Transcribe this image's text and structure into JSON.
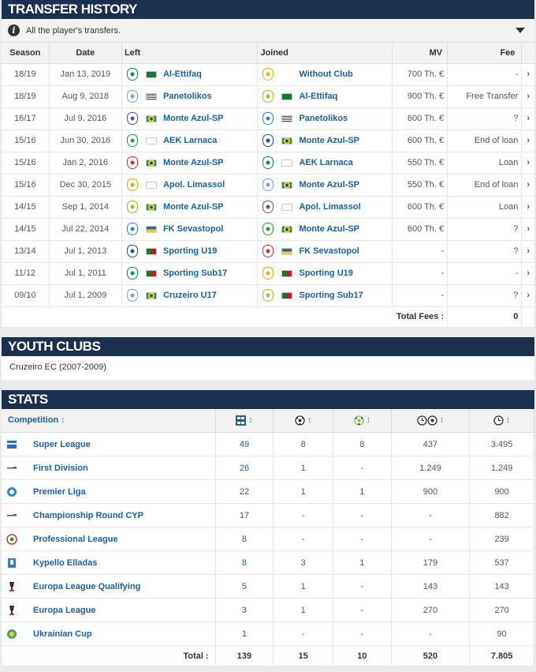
{
  "transfer": {
    "title": "TRANSFER HISTORY",
    "info": "All the player's transfers.",
    "columns": {
      "season": "Season",
      "date": "Date",
      "left": "Left",
      "joined": "Joined",
      "mv": "MV",
      "fee": "Fee"
    },
    "rows": [
      {
        "season": "18/19",
        "date": "Jan 13, 2019",
        "left": "Al-Ettifaq",
        "left_flag": "saudi",
        "joined": "Without Club",
        "joined_flag": "",
        "mv": "700 Th. €",
        "fee": "-"
      },
      {
        "season": "18/19",
        "date": "Aug 9, 2018",
        "left": "Panetolikos",
        "left_flag": "greece",
        "joined": "Al-Ettifaq",
        "joined_flag": "saudi",
        "mv": "900 Th. €",
        "fee": "Free Transfer"
      },
      {
        "season": "16/17",
        "date": "Jul 9, 2016",
        "left": "Monte Azul-SP",
        "left_flag": "brazil",
        "joined": "Panetolikos",
        "joined_flag": "greece",
        "mv": "600 Th. €",
        "fee": "?"
      },
      {
        "season": "15/16",
        "date": "Jun 30, 2016",
        "left": "AEK Larnaca",
        "left_flag": "cyprus",
        "joined": "Monte Azul-SP",
        "joined_flag": "brazil",
        "mv": "600 Th. €",
        "fee": "End of loan"
      },
      {
        "season": "15/16",
        "date": "Jan 2, 2016",
        "left": "Monte Azul-SP",
        "left_flag": "brazil",
        "joined": "AEK Larnaca",
        "joined_flag": "cyprus",
        "mv": "550 Th. €",
        "fee": "Loan"
      },
      {
        "season": "15/16",
        "date": "Dec 30, 2015",
        "left": "Apol. Limassol",
        "left_flag": "cyprus",
        "joined": "Monte Azul-SP",
        "joined_flag": "brazil",
        "mv": "550 Th. €",
        "fee": "End of loan"
      },
      {
        "season": "14/15",
        "date": "Sep 1, 2014",
        "left": "Monte Azul-SP",
        "left_flag": "brazil",
        "joined": "Apol. Limassol",
        "joined_flag": "cyprus",
        "mv": "600 Th. €",
        "fee": "Loan"
      },
      {
        "season": "14/15",
        "date": "Jul 22, 2014",
        "left": "FK Sevastopol",
        "left_flag": "ukraine",
        "joined": "Monte Azul-SP",
        "joined_flag": "brazil",
        "mv": "600 Th. €",
        "fee": "?"
      },
      {
        "season": "13/14",
        "date": "Jul 1, 2013",
        "left": "Sporting U19",
        "left_flag": "portugal",
        "joined": "FK Sevastopol",
        "joined_flag": "ukraine",
        "mv": "-",
        "fee": "?"
      },
      {
        "season": "11/12",
        "date": "Jul 1, 2011",
        "left": "Sporting Sub17",
        "left_flag": "portugal",
        "joined": "Sporting U19",
        "joined_flag": "portugal",
        "mv": "-",
        "fee": "-"
      },
      {
        "season": "09/10",
        "date": "Jul 1, 2009",
        "left": "Cruzeiro U17",
        "left_flag": "brazil",
        "joined": "Sporting Sub17",
        "joined_flag": "portugal",
        "mv": "-",
        "fee": "?"
      }
    ],
    "total_label": "Total Fees :",
    "total_value": "0"
  },
  "youth": {
    "title": "YOUTH CLUBS",
    "text": "Cruzeiro EC (2007-2009)"
  },
  "stats": {
    "title": "STATS",
    "competition_label": "Competition",
    "header_icons": [
      "appearances-icon",
      "goals-icon",
      "assists-icon",
      "minutes-per-goal-icon",
      "minutes-played-icon"
    ],
    "rows": [
      {
        "name": "Super League",
        "icon": "greek-league",
        "apps": "49",
        "goals": "8",
        "assists": "8",
        "mpg": "437",
        "mins": "3.495"
      },
      {
        "name": "First Division",
        "icon": "cyprus-league",
        "apps": "26",
        "goals": "1",
        "assists": "-",
        "mpg": "1.249",
        "mins": "1.249"
      },
      {
        "name": "Premier Liga",
        "icon": "ukraine-league",
        "apps": "22",
        "goals": "1",
        "assists": "1",
        "mpg": "900",
        "mins": "900"
      },
      {
        "name": "Championship Round CYP",
        "icon": "cyprus-league",
        "apps": "17",
        "goals": "-",
        "assists": "-",
        "mpg": "-",
        "mins": "882"
      },
      {
        "name": "Professional League",
        "icon": "saudi-league",
        "apps": "8",
        "goals": "-",
        "assists": "-",
        "mpg": "-",
        "mins": "239"
      },
      {
        "name": "Kypello Elladas",
        "icon": "greek-cup",
        "apps": "8",
        "goals": "3",
        "assists": "1",
        "mpg": "179",
        "mins": "537"
      },
      {
        "name": "Europa League Qualifying",
        "icon": "europa-trophy",
        "apps": "5",
        "goals": "1",
        "assists": "-",
        "mpg": "143",
        "mins": "143"
      },
      {
        "name": "Europa League",
        "icon": "europa-trophy",
        "apps": "3",
        "goals": "1",
        "assists": "-",
        "mpg": "270",
        "mins": "270"
      },
      {
        "name": "Ukrainian Cup",
        "icon": "ukraine-cup",
        "apps": "1",
        "goals": "-",
        "assists": "-",
        "mpg": "-",
        "mins": "90"
      }
    ],
    "total_label": "Total :",
    "totals": {
      "apps": "139",
      "goals": "15",
      "assists": "10",
      "mpg": "520",
      "mins": "7.805"
    }
  }
}
